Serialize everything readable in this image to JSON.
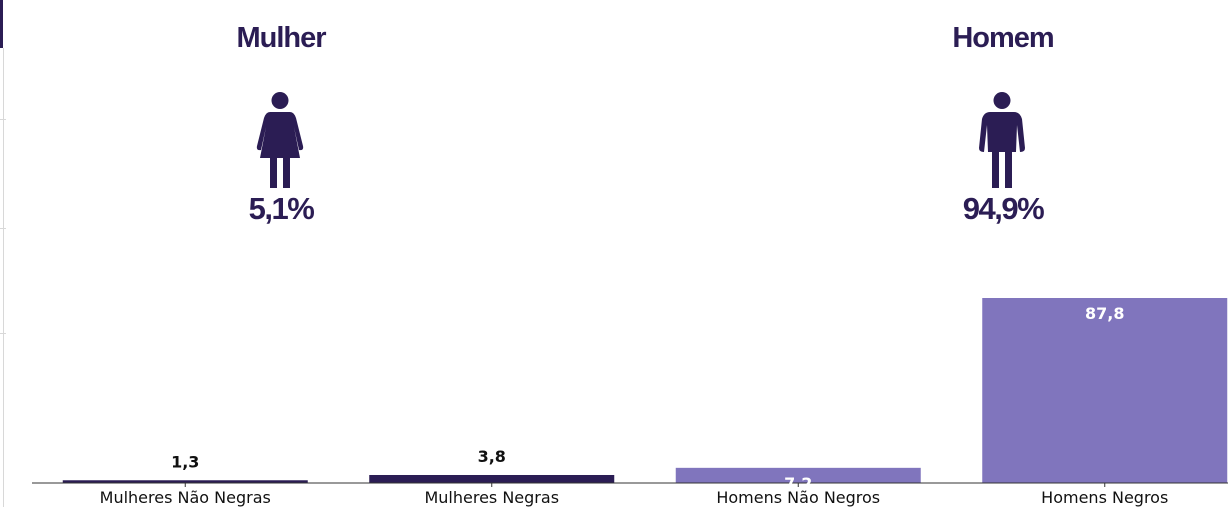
{
  "panels": {
    "female": {
      "title": "Mulher",
      "percent": "5,1%",
      "icon": "female-figure-icon"
    },
    "male": {
      "title": "Homem",
      "percent": "94,9%",
      "icon": "male-figure-icon"
    }
  },
  "colors": {
    "dark": "#2b1d54",
    "light": "#8075bd",
    "axis": "#333333"
  },
  "chart_data": {
    "type": "bar",
    "categories": [
      "Mulheres Não Negras",
      "Mulheres Negras",
      "Homens Não Negros",
      "Homens Negros"
    ],
    "values": [
      1.3,
      3.8,
      7.2,
      87.8
    ],
    "value_labels": [
      "1,3",
      "3,8",
      "7,2",
      "87,8"
    ],
    "bar_colors": [
      "#2b1d54",
      "#2b1d54",
      "#8075bd",
      "#8075bd"
    ],
    "label_position": [
      "outside",
      "outside",
      "inside",
      "inside"
    ],
    "title": "",
    "xlabel": "",
    "ylabel": "",
    "ylim": [
      0,
      87.8
    ],
    "grid": false,
    "legend": "none"
  }
}
